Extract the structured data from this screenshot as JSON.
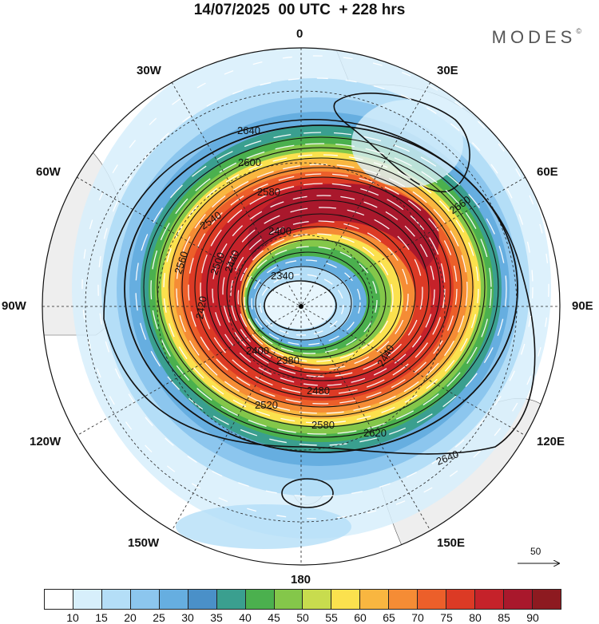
{
  "header": {
    "title": "14/07/2025  00 UTC  + 228 hrs",
    "brand": "MODES"
  },
  "map": {
    "projection": "south polar stereographic",
    "longitude_labels": {
      "top": "0",
      "top_right": "30E",
      "upper_right": "60E",
      "right": "90E",
      "lower_right": "120E",
      "bottom_right": "150E",
      "bottom": "180",
      "bottom_left": "150W",
      "lower_left": "120W",
      "left": "90W",
      "upper_left": "60W",
      "top_left": "30W"
    },
    "contour_labels": [
      "2640",
      "2600",
      "2580",
      "2540",
      "2560",
      "2500",
      "2440",
      "2400",
      "2420",
      "2340",
      "2380",
      "2480",
      "2520",
      "2580",
      "2620",
      "2640",
      "2660",
      "2440",
      "2400"
    ],
    "reference_vector_label": "50"
  },
  "colorbar": {
    "colors": [
      "#ffffff",
      "#d7effb",
      "#b4def7",
      "#8cc6ee",
      "#66aee0",
      "#4a90c8",
      "#3a9f8f",
      "#4bb04e",
      "#84c74a",
      "#c8dc4e",
      "#fbe14e",
      "#f9b640",
      "#f58c35",
      "#ec5f2a",
      "#dc3a25",
      "#c5222a",
      "#a9182c",
      "#8d1a20"
    ],
    "ticks": [
      "10",
      "15",
      "20",
      "25",
      "30",
      "35",
      "40",
      "45",
      "50",
      "55",
      "60",
      "65",
      "70",
      "75",
      "80",
      "85",
      "90"
    ]
  }
}
